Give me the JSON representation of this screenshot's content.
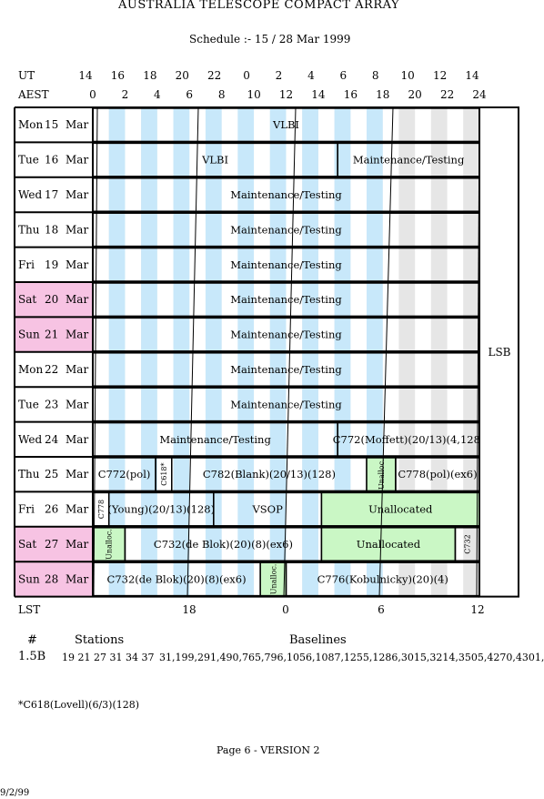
{
  "title": "AUSTRALIA TELESCOPE COMPACT ARRAY",
  "subtitle": "Schedule :- 15 / 28 Mar 1999",
  "axes": {
    "ut_label": "UT",
    "aest_label": "AEST",
    "lst_label": "LST",
    "ut_ticks": [
      "14",
      "16",
      "18",
      "20",
      "22",
      "0",
      "2",
      "4",
      "6",
      "8",
      "10",
      "12",
      "14"
    ],
    "aest_ticks": [
      "0",
      "2",
      "4",
      "6",
      "8",
      "10",
      "12",
      "14",
      "16",
      "18",
      "20",
      "22",
      "24"
    ],
    "lst_ticks": [
      "18",
      "0",
      "6",
      "12"
    ]
  },
  "colors": {
    "weekend": "#f7c3e3",
    "blue_band": "#c8e8fa",
    "grey_band": "#e6e6e6",
    "unallocated": "#caf7c5"
  },
  "configuration": "1.5B",
  "rows": [
    {
      "day": "Mon",
      "date": "15",
      "month": "Mar",
      "weekend": false,
      "blocks": [
        {
          "label": "VLBI",
          "start": 0,
          "end": 24
        }
      ]
    },
    {
      "day": "Tue",
      "date": "16",
      "month": "Mar",
      "weekend": false,
      "blocks": [
        {
          "label": "VLBI",
          "start": 0,
          "end": 15.2
        },
        {
          "label": "Maintenance/Testing",
          "start": 15.2,
          "end": 24
        }
      ]
    },
    {
      "day": "Wed",
      "date": "17",
      "month": "Mar",
      "weekend": false,
      "blocks": [
        {
          "label": "Maintenance/Testing",
          "start": 0,
          "end": 24
        }
      ]
    },
    {
      "day": "Thu",
      "date": "18",
      "month": "Mar",
      "weekend": false,
      "blocks": [
        {
          "label": "Maintenance/Testing",
          "start": 0,
          "end": 24
        }
      ]
    },
    {
      "day": "Fri",
      "date": "19",
      "month": "Mar",
      "weekend": false,
      "blocks": [
        {
          "label": "Maintenance/Testing",
          "start": 0,
          "end": 24
        }
      ]
    },
    {
      "day": "Sat",
      "date": "20",
      "month": "Mar",
      "weekend": true,
      "blocks": [
        {
          "label": "Maintenance/Testing",
          "start": 0,
          "end": 24
        }
      ]
    },
    {
      "day": "Sun",
      "date": "21",
      "month": "Mar",
      "weekend": true,
      "blocks": [
        {
          "label": "Maintenance/Testing",
          "start": 0,
          "end": 24
        }
      ]
    },
    {
      "day": "Mon",
      "date": "22",
      "month": "Mar",
      "weekend": false,
      "blocks": [
        {
          "label": "Maintenance/Testing",
          "start": 0,
          "end": 24
        }
      ]
    },
    {
      "day": "Tue",
      "date": "23",
      "month": "Mar",
      "weekend": false,
      "blocks": [
        {
          "label": "Maintenance/Testing",
          "start": 0,
          "end": 24
        }
      ]
    },
    {
      "day": "Wed",
      "date": "24",
      "month": "Mar",
      "weekend": false,
      "blocks": [
        {
          "label": "Maintenance/Testing",
          "start": 0,
          "end": 15.2
        },
        {
          "label": "C772(Moffett)(20/13)(4,128)",
          "start": 15.2,
          "end": 24
        }
      ]
    },
    {
      "day": "Thu",
      "date": "25",
      "month": "Mar",
      "weekend": false,
      "blocks": [
        {
          "label": "C772(pol)",
          "start": 0,
          "end": 3.9
        },
        {
          "label": "C618*",
          "start": 3.9,
          "end": 4.9,
          "vertical": true
        },
        {
          "label": "C782(Blank)(20/13)(128)",
          "start": 4.9,
          "end": 17
        },
        {
          "label": "Unalloc.",
          "start": 17,
          "end": 18.8,
          "vertical": true,
          "unalloc": true
        },
        {
          "label": "C778(pol)(ex6)",
          "start": 18.8,
          "end": 24
        }
      ]
    },
    {
      "day": "Fri",
      "date": "26",
      "month": "Mar",
      "weekend": false,
      "blocks": [
        {
          "label": "C778",
          "start": 0,
          "end": 1,
          "vertical": true
        },
        {
          "label": "(Young)(20/13)(128)",
          "start": 1,
          "end": 7.5
        },
        {
          "label": "VSOP",
          "start": 7.5,
          "end": 14.2
        },
        {
          "label": "Unallocated",
          "start": 14.2,
          "end": 24,
          "unalloc": true
        }
      ]
    },
    {
      "day": "Sat",
      "date": "27",
      "month": "Mar",
      "weekend": true,
      "blocks": [
        {
          "label": "Unalloc.",
          "start": 0,
          "end": 2,
          "vertical": true,
          "unalloc": true
        },
        {
          "label": "C732(de Blok)(20)(8)(ex6)",
          "start": 2,
          "end": 14.2
        },
        {
          "label": "Unallocated",
          "start": 14.2,
          "end": 22.5,
          "unalloc": true
        },
        {
          "label": "C732",
          "start": 22.5,
          "end": 24,
          "vertical": true
        }
      ]
    },
    {
      "day": "Sun",
      "date": "28",
      "month": "Mar",
      "weekend": true,
      "blocks": [
        {
          "label": "C732(de Blok)(20)(8)(ex6)",
          "start": 0,
          "end": 10.4
        },
        {
          "label": "Unalloc.",
          "start": 10.4,
          "end": 12,
          "vertical": true,
          "unalloc": true
        },
        {
          "label": "C776(Kobulnicky)(20)(4)",
          "start": 12,
          "end": 24
        }
      ]
    }
  ],
  "side_label": "LSB",
  "stations_table": {
    "hash_header": "#",
    "stations_header": "Stations",
    "baselines_header": "Baselines",
    "config": "1.5B",
    "stations": "19 21 27 31 34 37",
    "baselines": "31,199,291,490,765,796,1056,1087,1255,1286,3015,3214,3505,4270,4301,"
  },
  "footnote": "*C618(Lovell)(6/3)(128)",
  "page_label": "Page 6 - VERSION 2",
  "date_stamp": "9/2/99"
}
